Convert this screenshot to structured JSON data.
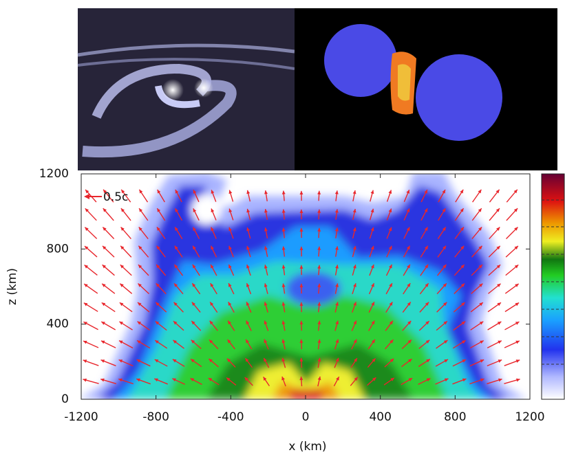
{
  "chart_data": {
    "type": "heatmap",
    "xlabel": "x (km)",
    "ylabel": "z (km)",
    "xlim": [
      -1200,
      1200
    ],
    "ylim": [
      0,
      1200
    ],
    "xticks": [
      -1200,
      -800,
      -400,
      0,
      400,
      800,
      1200
    ],
    "yticks": [
      0,
      400,
      800,
      1200
    ],
    "annotation": "0.5c",
    "arrow_color": "#e8262c"
  }
}
